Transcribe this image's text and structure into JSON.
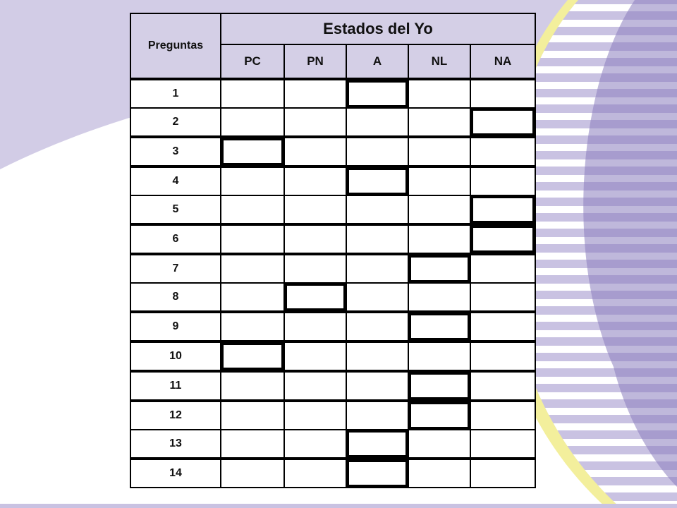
{
  "table": {
    "row_header_label": "Preguntas",
    "group_header": "Estados del Yo",
    "columns": [
      "PC",
      "PN",
      "A",
      "NL",
      "NA"
    ],
    "rows": [
      {
        "label": "1",
        "marked": "A"
      },
      {
        "label": "2",
        "marked": "NA"
      },
      {
        "label": "3",
        "marked": "PC"
      },
      {
        "label": "4",
        "marked": "A"
      },
      {
        "label": "5",
        "marked": "NA"
      },
      {
        "label": "6",
        "marked": "NA"
      },
      {
        "label": "7",
        "marked": "NL"
      },
      {
        "label": "8",
        "marked": "PN"
      },
      {
        "label": "9",
        "marked": "NL"
      },
      {
        "label": "10",
        "marked": "PC"
      },
      {
        "label": "11",
        "marked": "NL"
      },
      {
        "label": "12",
        "marked": "NL"
      },
      {
        "label": "13",
        "marked": "A"
      },
      {
        "label": "14",
        "marked": "A"
      }
    ]
  },
  "colors": {
    "header_fill": "#d4cfe6",
    "background_accent": "#c9c2e2",
    "stripe_color": "#ffffff",
    "arc_yellow": "#f3ef9c",
    "arc_purple": "#7d70b5",
    "border": "#000000"
  }
}
